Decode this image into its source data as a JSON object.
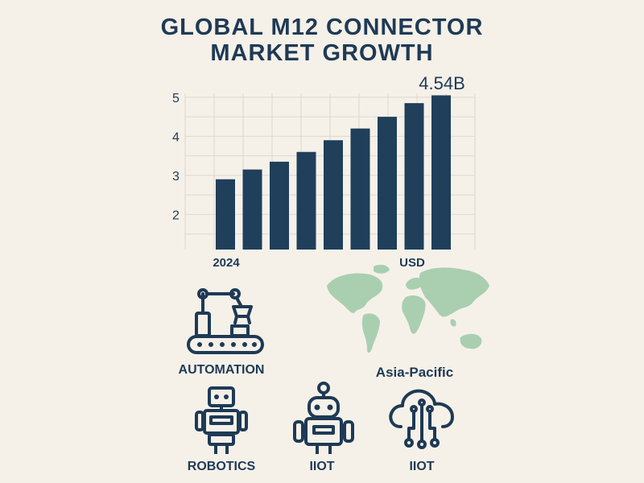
{
  "title_line1": "GLOBAL M12 CONNECTOR",
  "title_line2": "MARKET GROWTH",
  "chart_data": {
    "type": "bar",
    "categories": [
      "2024",
      "",
      "",
      "",
      "",
      "",
      "",
      "",
      ""
    ],
    "values": [
      2.9,
      3.15,
      3.35,
      3.6,
      3.9,
      4.2,
      4.5,
      4.85,
      5.05
    ],
    "yticks": [
      2,
      3,
      4,
      5
    ],
    "ylim": [
      1.1,
      5.1
    ],
    "x_start_label": "2024",
    "unit_label": "USD",
    "callout": "4.54B",
    "grid": true,
    "bar_color": "#1f3f5b"
  },
  "icons": {
    "automation": "robotic-arm-conveyor-icon",
    "world": "world-map-icon",
    "robotics": "robot-icon",
    "iiot_robot": "robot-antenna-icon",
    "iiot_cloud": "cloud-network-icon"
  },
  "labels": {
    "automation": "AUTOMATION",
    "region": "Asia-Pacific",
    "robotics": "ROBOTICS",
    "iiot1": "IIOT",
    "iiot2": "IIOT"
  },
  "colors": {
    "navy": "#1e3a55",
    "map_green": "#a9cfb0",
    "background": "#f5f1e9"
  }
}
